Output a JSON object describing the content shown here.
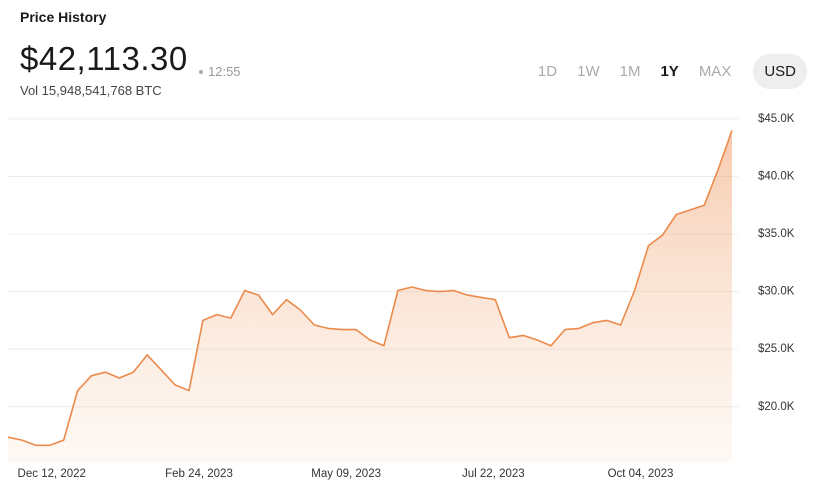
{
  "header": {
    "title": "Price History",
    "price": "$42,113.30",
    "time": "12:55",
    "volume": "Vol 15,948,541,768 BTC",
    "ranges": [
      "1D",
      "1W",
      "1M",
      "1Y",
      "MAX"
    ],
    "active_range": 3,
    "currency": "USD"
  },
  "chart_data": {
    "type": "area",
    "x": [
      "2022-11-20",
      "2022-11-27",
      "2022-12-04",
      "2022-12-11",
      "2022-12-18",
      "2022-12-25",
      "2023-01-01",
      "2023-01-08",
      "2023-01-15",
      "2023-01-22",
      "2023-01-29",
      "2023-02-05",
      "2023-02-12",
      "2023-02-19",
      "2023-02-26",
      "2023-03-05",
      "2023-03-12",
      "2023-03-19",
      "2023-03-26",
      "2023-04-02",
      "2023-04-09",
      "2023-04-16",
      "2023-04-23",
      "2023-04-30",
      "2023-05-07",
      "2023-05-14",
      "2023-05-21",
      "2023-05-28",
      "2023-06-04",
      "2023-06-11",
      "2023-06-18",
      "2023-06-25",
      "2023-07-02",
      "2023-07-09",
      "2023-07-16",
      "2023-07-23",
      "2023-07-30",
      "2023-08-06",
      "2023-08-13",
      "2023-08-20",
      "2023-08-27",
      "2023-09-03",
      "2023-09-10",
      "2023-09-17",
      "2023-09-24",
      "2023-10-01",
      "2023-10-08",
      "2023-10-15",
      "2023-10-22",
      "2023-10-29",
      "2023-11-05",
      "2023-11-12",
      "2023-11-19"
    ],
    "series": [
      {
        "color": "#ec8a4c",
        "values": [
          17350,
          17100,
          16650,
          16650,
          17100,
          21400,
          22700,
          23000,
          22500,
          23000,
          24500,
          23200,
          21900,
          21400,
          27500,
          28000,
          27700,
          30100,
          29700,
          28000,
          29300,
          28400,
          27100,
          26800,
          26700,
          26700,
          25800,
          25300,
          30100,
          30400,
          30100,
          30000,
          30100,
          29700,
          29500,
          29300,
          26000,
          26200,
          25800,
          25300,
          26700,
          26800,
          27300,
          27500,
          27100,
          30100,
          34000,
          34900,
          36700,
          37100,
          37500,
          40600,
          44000
        ]
      }
    ],
    "xlim": [
      "2022-11-20",
      "2023-11-22"
    ],
    "xticks": [
      {
        "value": "2022-12-12",
        "label": "Dec 12, 2022"
      },
      {
        "value": "2023-02-24",
        "label": "Feb 24, 2023"
      },
      {
        "value": "2023-05-09",
        "label": "May 09, 2023"
      },
      {
        "value": "2023-07-22",
        "label": "Jul 22, 2023"
      },
      {
        "value": "2023-10-04",
        "label": "Oct 04, 2023"
      }
    ],
    "ylim": [
      15200,
      45600
    ],
    "yticks": [
      {
        "value": 20000,
        "label": "$20.0K"
      },
      {
        "value": 25000,
        "label": "$25.0K"
      },
      {
        "value": 30000,
        "label": "$30.0K"
      },
      {
        "value": 35000,
        "label": "$35.0K"
      },
      {
        "value": 40000,
        "label": "$40.0K"
      },
      {
        "value": 45000,
        "label": "$45.0K"
      }
    ],
    "grid": true
  }
}
